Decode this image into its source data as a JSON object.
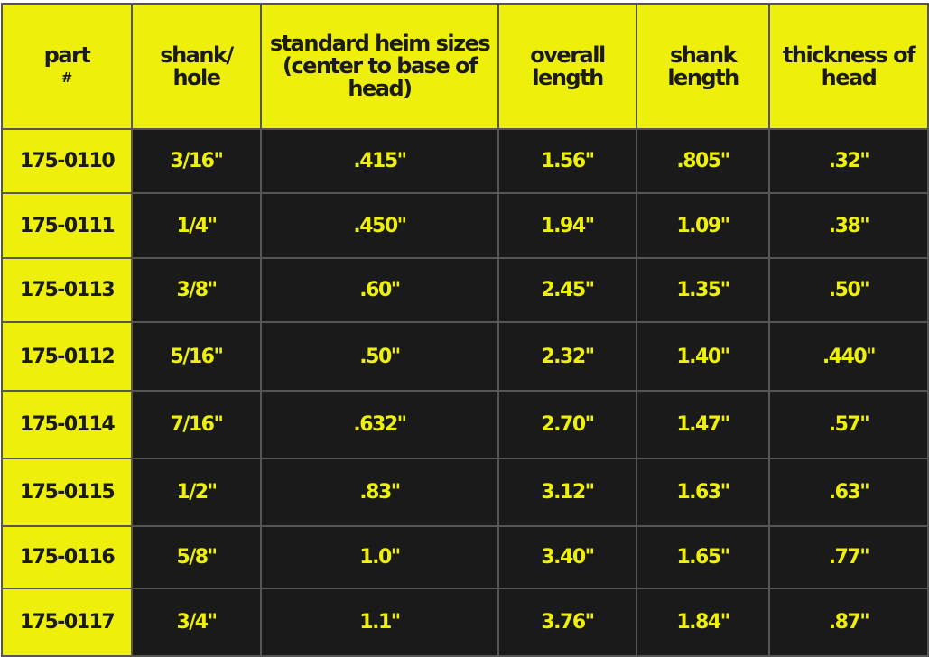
{
  "colors": {
    "accent": "#eef00b",
    "cell_bg": "#1a1a1a"
  },
  "headers": [
    {
      "label": "part",
      "sub": "#"
    },
    {
      "label": "shank/ hole"
    },
    {
      "label": "standard heim sizes (center to base of head)"
    },
    {
      "label": "overall length"
    },
    {
      "label": "shank length"
    },
    {
      "label": "thickness of head"
    }
  ],
  "rows": [
    [
      "175-0110",
      "3/16\"",
      ".415\"",
      "1.56\"",
      ".805\"",
      ".32\""
    ],
    [
      "175-0111",
      "1/4\"",
      ".450\"",
      "1.94\"",
      "1.09\"",
      ".38\""
    ],
    [
      "175-0113",
      "3/8\"",
      ".60\"",
      "2.45\"",
      "1.35\"",
      ".50\""
    ],
    [
      "175-0112",
      "5/16\"",
      ".50\"",
      "2.32\"",
      "1.40\"",
      ".440\""
    ],
    [
      "175-0114",
      "7/16\"",
      ".632\"",
      "2.70\"",
      "1.47\"",
      ".57\""
    ],
    [
      "175-0115",
      "1/2\"",
      ".83\"",
      "3.12\"",
      "1.63\"",
      ".63\""
    ],
    [
      "175-0116",
      "5/8\"",
      "1.0\"",
      "3.40\"",
      "1.65\"",
      ".77\""
    ],
    [
      "175-0117",
      "3/4\"",
      "1.1\"",
      "3.76\"",
      "1.84\"",
      ".87\""
    ]
  ]
}
